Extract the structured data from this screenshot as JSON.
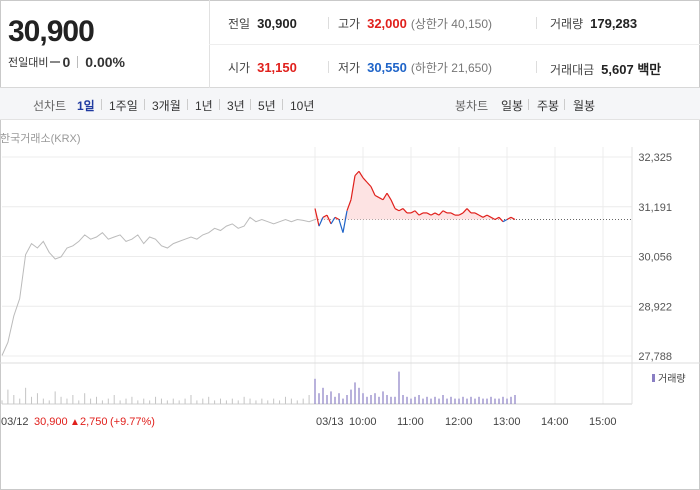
{
  "quote": {
    "price": "30,900",
    "change_label": "전일대비",
    "change_value": "0",
    "change_pct": "0.00%"
  },
  "stats": {
    "prev_close": {
      "label": "전일",
      "value": "30,900"
    },
    "high": {
      "label": "고가",
      "value": "32,000",
      "sub": "(상한가 40,150)"
    },
    "volume": {
      "label": "거래량",
      "value": "179,283"
    },
    "open": {
      "label": "시가",
      "value": "31,150"
    },
    "low": {
      "label": "저가",
      "value": "30,550",
      "sub": "(하한가 21,650)"
    },
    "turnover": {
      "label": "거래대금",
      "value": "5,607 백만"
    }
  },
  "toolbar": {
    "line_chart_label": "선차트",
    "periods": [
      "1일",
      "1주일",
      "3개월",
      "1년",
      "3년",
      "5년",
      "10년"
    ],
    "selected_period": "1일",
    "candle_label": "봉차트",
    "candle_periods": [
      "일봉",
      "주봉",
      "월봉"
    ]
  },
  "chart": {
    "source": "한국거래소(KRX)",
    "volume_legend": "거래량",
    "prev_day_footer": {
      "date": "03/12",
      "price": "30,900",
      "arrow": "▲",
      "change": "2,750",
      "pct": "(+9.77%)"
    },
    "colors": {
      "up": "#e0201c",
      "down": "#1f64c8",
      "prev": "#bbbbbb",
      "fill": "#fde3e3",
      "vol": "#8a7fc4"
    }
  },
  "chart_data": {
    "type": "line",
    "y_ticks": [
      "32,325",
      "31,191",
      "30,056",
      "28,922",
      "27,788"
    ],
    "ylim": [
      27788,
      32325
    ],
    "baseline": 30900,
    "x_ticks": [
      "03/12",
      "03/13",
      "10:00",
      "11:00",
      "12:00",
      "13:00",
      "14:00",
      "15:00"
    ],
    "prev_day": {
      "name": "03/12",
      "values": [
        27800,
        28100,
        28700,
        29100,
        30100,
        30350,
        30250,
        30400,
        30150,
        30000,
        30050,
        30250,
        30300,
        30400,
        30550,
        30450,
        30500,
        30600,
        30450,
        30500,
        30550,
        30400,
        30450,
        30550,
        30350,
        30500,
        30450,
        30300,
        30250,
        30350,
        30400,
        30450,
        30500,
        30450,
        30550,
        30600,
        30700,
        30650,
        30750,
        30800,
        30700,
        30750,
        30950,
        30850,
        30900,
        30850,
        30800,
        30850,
        30900,
        30850,
        30900,
        30880,
        30850,
        30900
      ]
    },
    "today": {
      "name": "03/13",
      "values": [
        31150,
        30750,
        30950,
        31000,
        30800,
        30950,
        30900,
        30600,
        31100,
        31350,
        31900,
        32000,
        31850,
        31750,
        31650,
        31450,
        31400,
        31350,
        31500,
        31350,
        31150,
        31100,
        31150,
        31050,
        31050,
        31100,
        31000,
        31050,
        31050,
        31000,
        31050,
        31000,
        31100,
        31050,
        31050,
        31000,
        31000,
        31050,
        31150,
        31050,
        31050,
        31000,
        30950,
        31000,
        30950,
        30900,
        30950,
        30850,
        30900,
        30950,
        30900
      ]
    },
    "prev_volume": [
      2,
      8,
      5,
      3,
      9,
      4,
      6,
      3,
      2,
      7,
      4,
      3,
      5,
      2,
      6,
      3,
      4,
      2,
      3,
      5,
      2,
      3,
      4,
      2,
      3,
      2,
      4,
      3,
      2,
      3,
      2,
      3,
      5,
      2,
      3,
      4,
      2,
      3,
      2,
      3,
      2,
      4,
      3,
      2,
      3,
      2,
      3,
      2,
      4,
      3,
      2,
      3,
      5,
      8
    ],
    "today_volume": [
      14,
      6,
      9,
      5,
      7,
      4,
      6,
      3,
      5,
      8,
      12,
      9,
      6,
      4,
      5,
      6,
      4,
      7,
      5,
      4,
      4,
      18,
      5,
      4,
      3,
      4,
      5,
      3,
      4,
      3,
      4,
      3,
      5,
      3,
      4,
      3,
      3,
      4,
      3,
      4,
      3,
      4,
      3,
      3,
      4,
      3,
      3,
      4,
      3,
      4,
      5
    ]
  }
}
